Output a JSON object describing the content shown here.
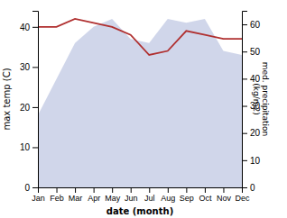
{
  "chart_data": {
    "type": "line",
    "xlabel": "date (month)",
    "ylabel": "max temp (C)",
    "y2label": "med. precipitation\n(kg/m2)",
    "categories": [
      "Jan",
      "Feb",
      "Mar",
      "Apr",
      "May",
      "Jun",
      "Jul",
      "Aug",
      "Sep",
      "Oct",
      "Nov",
      "Dec"
    ],
    "series": [
      {
        "type": "area",
        "color": "#aab4d8",
        "values": [
          18,
          27,
          36,
          40,
          42,
          37,
          36,
          42,
          41,
          42,
          34,
          33
        ]
      },
      {
        "type": "line",
        "color": "#b03030",
        "values": [
          40,
          40,
          42,
          41,
          40,
          38,
          33,
          34,
          39,
          38,
          37,
          37
        ]
      }
    ],
    "ylim": [
      0,
      44
    ],
    "yticks": [
      0,
      10,
      20,
      30,
      40
    ],
    "y2lim": [
      0,
      65
    ],
    "y2ticks": [
      0,
      10,
      20,
      30,
      40,
      50,
      60
    ]
  }
}
